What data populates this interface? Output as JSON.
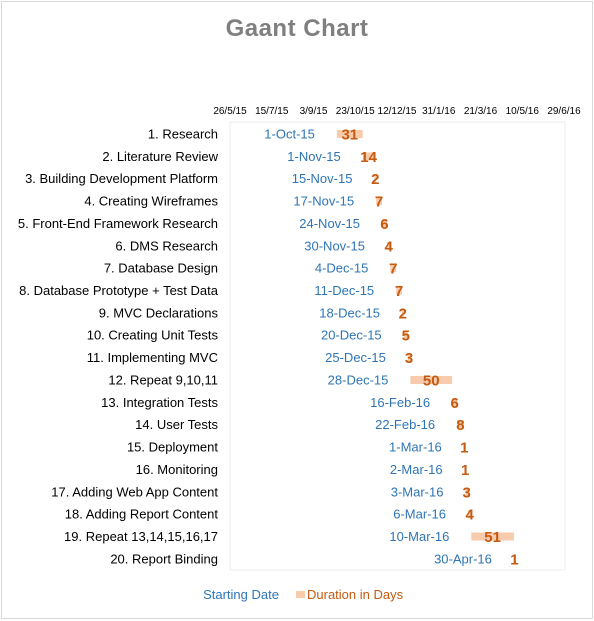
{
  "chart_data": {
    "type": "bar",
    "title": "Gaant Chart",
    "x_ticks": [
      "26/5/15",
      "15/7/15",
      "3/9/15",
      "23/10/15",
      "12/12/15",
      "31/1/16",
      "21/3/16",
      "10/5/16",
      "29/6/16"
    ],
    "categories": [
      "1. Research",
      "2. Literature Review",
      "3. Building Development Platform",
      "4. Creating Wireframes",
      "5. Front-End Framework Research",
      "6. DMS Research",
      "7. Database Design",
      "8. Database Prototype + Test Data",
      "9. MVC Declarations",
      "10. Creating Unit Tests",
      "11. Implementing MVC",
      "12. Repeat 9,10,11",
      "13. Integration Tests",
      "14. User Tests",
      "15. Deployment",
      "16. Monitoring",
      "17. Adding Web App Content",
      "18. Adding Report Content",
      "19. Repeat 13,14,15,16,17",
      "20. Report Binding"
    ],
    "series": [
      {
        "name": "Starting Date",
        "values": [
          "1-Oct-15",
          "1-Nov-15",
          "15-Nov-15",
          "17-Nov-15",
          "24-Nov-15",
          "30-Nov-15",
          "4-Dec-15",
          "11-Dec-15",
          "18-Dec-15",
          "20-Dec-15",
          "25-Dec-15",
          "28-Dec-15",
          "16-Feb-16",
          "22-Feb-16",
          "1-Mar-16",
          "2-Mar-16",
          "3-Mar-16",
          "6-Mar-16",
          "10-Mar-16",
          "30-Apr-16"
        ]
      },
      {
        "name": "Duration in Days",
        "values": [
          31,
          14,
          2,
          7,
          6,
          4,
          7,
          7,
          2,
          5,
          3,
          50,
          6,
          8,
          1,
          1,
          3,
          4,
          51,
          1
        ]
      }
    ],
    "xlim": [
      "2015-05-26",
      "2016-06-29"
    ],
    "grid": false,
    "legend_position": "bottom",
    "colors": {
      "start": "#2e75b6",
      "duration": "#c55a11",
      "bar": "#f8cbad",
      "title": "#7f7f7f"
    }
  }
}
